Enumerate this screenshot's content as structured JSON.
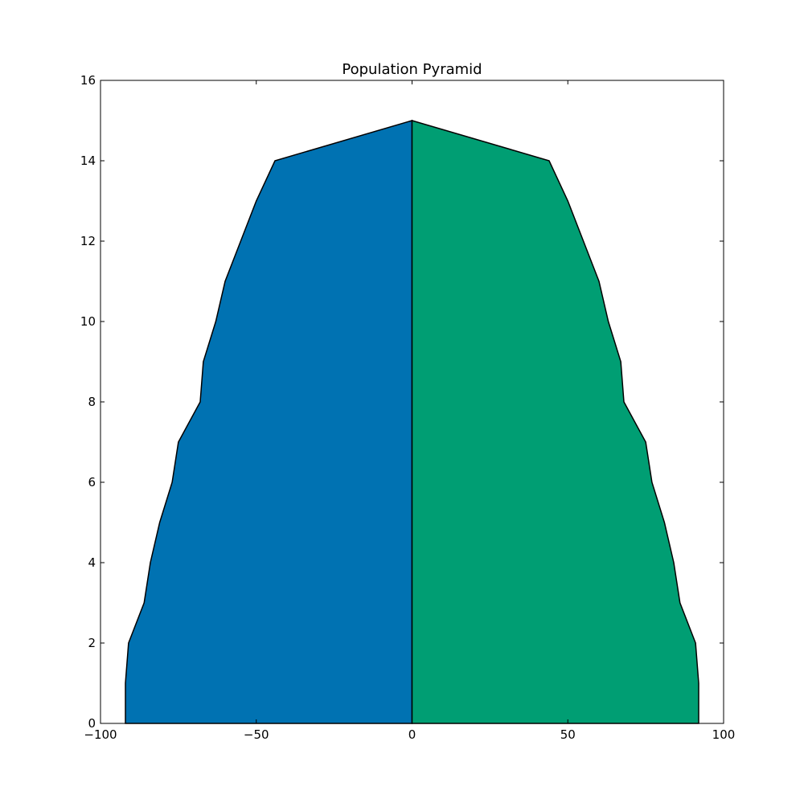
{
  "chart_data": {
    "type": "area",
    "title": "Population Pyramid",
    "xlabel": "",
    "ylabel": "",
    "xlim": [
      -100,
      100
    ],
    "ylim": [
      0,
      16
    ],
    "xticks": [
      -100,
      -50,
      0,
      50,
      100
    ],
    "xtick_labels": [
      "−100",
      "−50",
      "0",
      "50",
      "100"
    ],
    "yticks": [
      0,
      2,
      4,
      6,
      8,
      10,
      12,
      14,
      16
    ],
    "ytick_labels": [
      "0",
      "2",
      "4",
      "6",
      "8",
      "10",
      "12",
      "14",
      "16"
    ],
    "grid": false,
    "legend": "none",
    "y": [
      0,
      1,
      2,
      3,
      4,
      5,
      6,
      7,
      8,
      9,
      10,
      11,
      12,
      13,
      14,
      15
    ],
    "series": [
      {
        "color": "#0072b2",
        "values": [
          -92,
          -92,
          -91,
          -86,
          -84,
          -81,
          -77,
          -75,
          -68,
          -67,
          -63,
          -60,
          -55,
          -50,
          -44,
          0
        ]
      },
      {
        "color": "#009e73",
        "values": [
          92,
          92,
          91,
          86,
          84,
          81,
          77,
          75,
          68,
          67,
          63,
          60,
          55,
          50,
          44,
          0
        ]
      }
    ]
  }
}
